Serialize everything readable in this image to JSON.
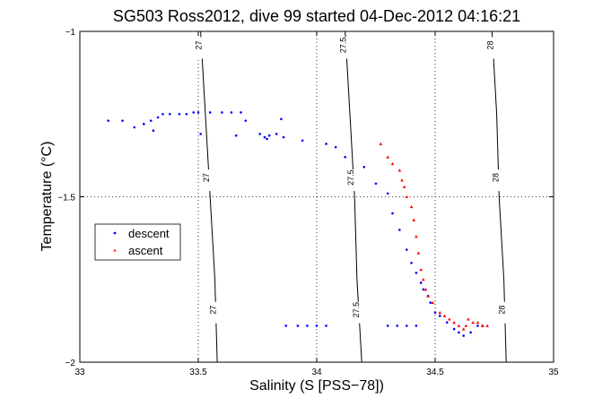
{
  "chart_data": {
    "type": "scatter",
    "title": "SG503 Ross2012, dive 99 started 04-Dec-2012 04:16:21",
    "xlabel": "Salinity (S [PSS−78])",
    "ylabel": "Temperature (°C)",
    "xlim": [
      33,
      35
    ],
    "ylim": [
      -2,
      -1
    ],
    "xticks": [
      33,
      33.5,
      34,
      34.5,
      35
    ],
    "xtick_labels": [
      "33",
      "33.5",
      "34",
      "34.5",
      "35"
    ],
    "yticks": [
      -2,
      -1.5,
      -1
    ],
    "ytick_labels": [
      "−2",
      "−1.5",
      "−1"
    ],
    "grid": "dotted",
    "legend_position": "left-middle",
    "series": [
      {
        "name": "descent",
        "color": "#0000ff",
        "marker": "dot",
        "points": [
          [
            33.12,
            -1.27
          ],
          [
            33.18,
            -1.27
          ],
          [
            33.23,
            -1.29
          ],
          [
            33.27,
            -1.28
          ],
          [
            33.3,
            -1.27
          ],
          [
            33.31,
            -1.3
          ],
          [
            33.33,
            -1.26
          ],
          [
            33.35,
            -1.25
          ],
          [
            33.38,
            -1.25
          ],
          [
            33.42,
            -1.25
          ],
          [
            33.45,
            -1.25
          ],
          [
            33.48,
            -1.245
          ],
          [
            33.5,
            -1.245
          ],
          [
            33.51,
            -1.31
          ],
          [
            33.55,
            -1.245
          ],
          [
            33.6,
            -1.245
          ],
          [
            33.64,
            -1.245
          ],
          [
            33.68,
            -1.245
          ],
          [
            33.66,
            -1.315
          ],
          [
            33.7,
            -1.27
          ],
          [
            33.76,
            -1.31
          ],
          [
            33.78,
            -1.32
          ],
          [
            33.79,
            -1.325
          ],
          [
            33.8,
            -1.315
          ],
          [
            33.83,
            -1.31
          ],
          [
            33.85,
            -1.265
          ],
          [
            33.86,
            -1.32
          ],
          [
            33.94,
            -1.33
          ],
          [
            34.04,
            -1.34
          ],
          [
            34.08,
            -1.35
          ],
          [
            34.12,
            -1.38
          ],
          [
            34.2,
            -1.41
          ],
          [
            34.25,
            -1.46
          ],
          [
            34.3,
            -1.49
          ],
          [
            34.32,
            -1.55
          ],
          [
            34.35,
            -1.6
          ],
          [
            34.38,
            -1.66
          ],
          [
            34.4,
            -1.7
          ],
          [
            34.42,
            -1.73
          ],
          [
            34.44,
            -1.76
          ],
          [
            34.45,
            -1.78
          ],
          [
            34.47,
            -1.8
          ],
          [
            34.48,
            -1.82
          ],
          [
            34.5,
            -1.85
          ],
          [
            34.52,
            -1.86
          ],
          [
            34.55,
            -1.88
          ],
          [
            34.58,
            -1.9
          ],
          [
            34.6,
            -1.91
          ],
          [
            34.62,
            -1.92
          ],
          [
            34.65,
            -1.91
          ],
          [
            34.68,
            -1.89
          ],
          [
            34.7,
            -1.89
          ],
          [
            33.87,
            -1.89
          ],
          [
            33.92,
            -1.89
          ],
          [
            33.96,
            -1.89
          ],
          [
            34.0,
            -1.89
          ],
          [
            34.04,
            -1.89
          ],
          [
            34.3,
            -1.89
          ],
          [
            34.34,
            -1.89
          ],
          [
            34.38,
            -1.89
          ],
          [
            34.42,
            -1.89
          ]
        ]
      },
      {
        "name": "ascent",
        "color": "#ff0000",
        "marker": "triangle",
        "points": [
          [
            34.27,
            -1.34
          ],
          [
            34.3,
            -1.38
          ],
          [
            34.32,
            -1.4
          ],
          [
            34.35,
            -1.42
          ],
          [
            34.36,
            -1.45
          ],
          [
            34.37,
            -1.47
          ],
          [
            34.38,
            -1.5
          ],
          [
            34.4,
            -1.53
          ],
          [
            34.41,
            -1.57
          ],
          [
            34.42,
            -1.62
          ],
          [
            34.43,
            -1.67
          ],
          [
            34.44,
            -1.72
          ],
          [
            34.45,
            -1.75
          ],
          [
            34.46,
            -1.78
          ],
          [
            34.47,
            -1.8
          ],
          [
            34.49,
            -1.82
          ],
          [
            34.52,
            -1.85
          ],
          [
            34.54,
            -1.86
          ],
          [
            34.56,
            -1.87
          ],
          [
            34.58,
            -1.88
          ],
          [
            34.6,
            -1.89
          ],
          [
            34.62,
            -1.9
          ],
          [
            34.63,
            -1.89
          ],
          [
            34.64,
            -1.87
          ],
          [
            34.66,
            -1.88
          ],
          [
            34.68,
            -1.88
          ],
          [
            34.7,
            -1.89
          ],
          [
            34.72,
            -1.89
          ]
        ]
      }
    ],
    "density_contours": [
      {
        "label": "27",
        "points": [
          [
            33.51,
            -1.0
          ],
          [
            33.53,
            -1.25
          ],
          [
            33.55,
            -1.5
          ],
          [
            33.57,
            -1.75
          ],
          [
            33.58,
            -2.0
          ]
        ]
      },
      {
        "label": "27.5",
        "points": [
          [
            34.12,
            -1.0
          ],
          [
            34.14,
            -1.25
          ],
          [
            34.16,
            -1.5
          ],
          [
            34.17,
            -1.75
          ],
          [
            34.19,
            -2.0
          ]
        ]
      },
      {
        "label": "28",
        "points": [
          [
            34.74,
            -1.0
          ],
          [
            34.76,
            -1.25
          ],
          [
            34.77,
            -1.5
          ],
          [
            34.79,
            -1.75
          ],
          [
            34.8,
            -2.0
          ]
        ]
      }
    ]
  }
}
